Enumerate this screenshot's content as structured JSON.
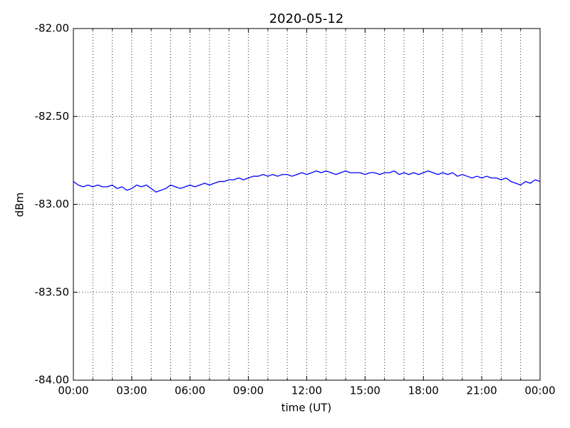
{
  "chart_data": {
    "type": "line",
    "title": "2020-05-12",
    "xlabel": "time (UT)",
    "ylabel": "dBm",
    "color": "#0000ff",
    "grid": true,
    "xlim": [
      0,
      24
    ],
    "xticks": [
      {
        "value": 0,
        "label": "00:00"
      },
      {
        "value": 3,
        "label": "03:00"
      },
      {
        "value": 6,
        "label": "06:00"
      },
      {
        "value": 9,
        "label": "09:00"
      },
      {
        "value": 12,
        "label": "12:00"
      },
      {
        "value": 15,
        "label": "15:00"
      },
      {
        "value": 18,
        "label": "18:00"
      },
      {
        "value": 21,
        "label": "21:00"
      },
      {
        "value": 24,
        "label": "00:00"
      }
    ],
    "xminorticks": [
      1,
      2,
      4,
      5,
      7,
      8,
      10,
      11,
      13,
      14,
      16,
      17,
      19,
      20,
      22,
      23
    ],
    "ylim": [
      -84,
      -82
    ],
    "yticks": [
      {
        "value": -84,
        "label": "-84.00"
      },
      {
        "value": -83.5,
        "label": "-83.50"
      },
      {
        "value": -83,
        "label": "-83.00"
      },
      {
        "value": -82.5,
        "label": "-82.50"
      },
      {
        "value": -82,
        "label": "-82.00"
      }
    ],
    "x": [
      0,
      0.25,
      0.5,
      0.75,
      1,
      1.25,
      1.5,
      1.75,
      2,
      2.25,
      2.5,
      2.75,
      3,
      3.25,
      3.5,
      3.75,
      4,
      4.25,
      4.5,
      4.75,
      5,
      5.25,
      5.5,
      5.75,
      6,
      6.25,
      6.5,
      6.75,
      7,
      7.25,
      7.5,
      7.75,
      8,
      8.25,
      8.5,
      8.75,
      9,
      9.25,
      9.5,
      9.75,
      10,
      10.25,
      10.5,
      10.75,
      11,
      11.25,
      11.5,
      11.75,
      12,
      12.25,
      12.5,
      12.75,
      13,
      13.25,
      13.5,
      13.75,
      14,
      14.25,
      14.5,
      14.75,
      15,
      15.25,
      15.5,
      15.75,
      16,
      16.25,
      16.5,
      16.75,
      17,
      17.25,
      17.5,
      17.75,
      18,
      18.25,
      18.5,
      18.75,
      19,
      19.25,
      19.5,
      19.75,
      20,
      20.25,
      20.5,
      20.75,
      21,
      21.25,
      21.5,
      21.75,
      22,
      22.25,
      22.5,
      22.75,
      23,
      23.25,
      23.5,
      23.75,
      24
    ],
    "values": [
      -82.87,
      -82.89,
      -82.9,
      -82.89,
      -82.9,
      -82.89,
      -82.9,
      -82.9,
      -82.89,
      -82.91,
      -82.9,
      -82.92,
      -82.91,
      -82.89,
      -82.9,
      -82.89,
      -82.91,
      -82.93,
      -82.92,
      -82.91,
      -82.89,
      -82.9,
      -82.91,
      -82.9,
      -82.89,
      -82.9,
      -82.89,
      -82.88,
      -82.89,
      -82.88,
      -82.87,
      -82.87,
      -82.86,
      -82.86,
      -82.85,
      -82.86,
      -82.85,
      -82.84,
      -82.84,
      -82.83,
      -82.84,
      -82.83,
      -82.84,
      -82.83,
      -82.83,
      -82.84,
      -82.83,
      -82.82,
      -82.83,
      -82.82,
      -82.81,
      -82.82,
      -82.81,
      -82.82,
      -82.83,
      -82.82,
      -82.81,
      -82.82,
      -82.82,
      -82.82,
      -82.83,
      -82.82,
      -82.82,
      -82.83,
      -82.82,
      -82.82,
      -82.81,
      -82.83,
      -82.82,
      -82.83,
      -82.82,
      -82.83,
      -82.82,
      -82.81,
      -82.82,
      -82.83,
      -82.82,
      -82.83,
      -82.82,
      -82.84,
      -82.83,
      -82.84,
      -82.85,
      -82.84,
      -82.85,
      -82.84,
      -82.85,
      -82.85,
      -82.86,
      -82.85,
      -82.87,
      -82.88,
      -82.89,
      -82.87,
      -82.88,
      -82.86,
      -82.87
    ]
  }
}
